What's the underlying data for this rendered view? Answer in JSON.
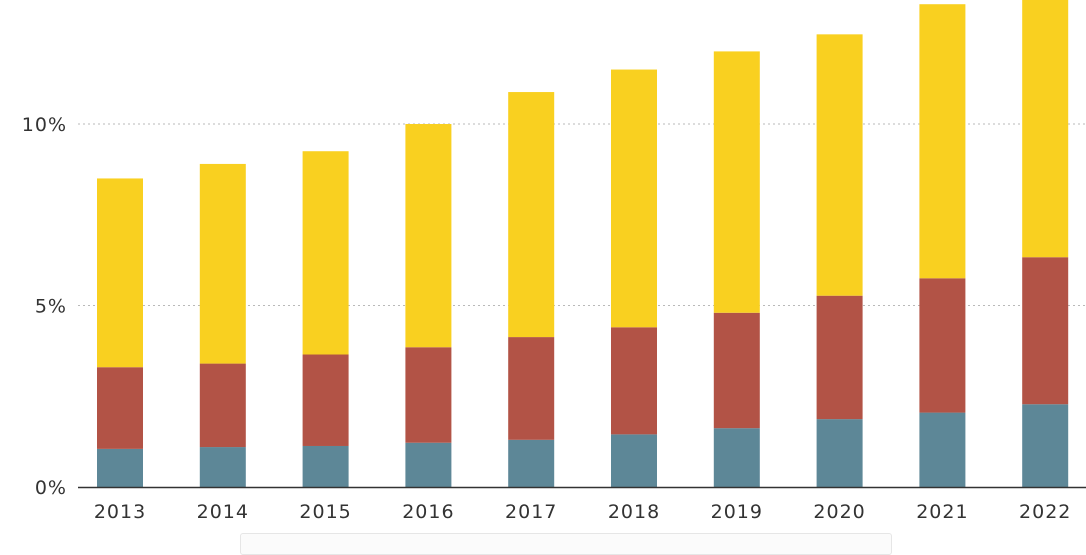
{
  "chart_data": {
    "type": "bar",
    "stacked": true,
    "categories": [
      "2013",
      "2014",
      "2015",
      "2016",
      "2017",
      "2018",
      "2019",
      "2020",
      "2021",
      "2022"
    ],
    "series": [
      {
        "color": "#5d8797",
        "values": [
          1.05,
          1.1,
          1.13,
          1.22,
          1.3,
          1.45,
          1.62,
          1.87,
          2.05,
          2.28
        ]
      },
      {
        "color": "#b25346",
        "values": [
          2.25,
          2.3,
          2.52,
          2.63,
          2.83,
          2.95,
          3.18,
          3.4,
          3.7,
          4.05
        ]
      },
      {
        "color": "#f9d020",
        "values": [
          5.2,
          5.5,
          5.6,
          6.15,
          6.75,
          7.1,
          7.2,
          7.2,
          7.55,
          7.1
        ]
      }
    ],
    "y_ticks": [
      {
        "value": 0,
        "label": "0%"
      },
      {
        "value": 5,
        "label": "5%"
      },
      {
        "value": 10,
        "label": "10%"
      }
    ],
    "ylim": [
      0,
      13.4
    ],
    "grid": true,
    "xlabel": "",
    "ylabel": ""
  }
}
